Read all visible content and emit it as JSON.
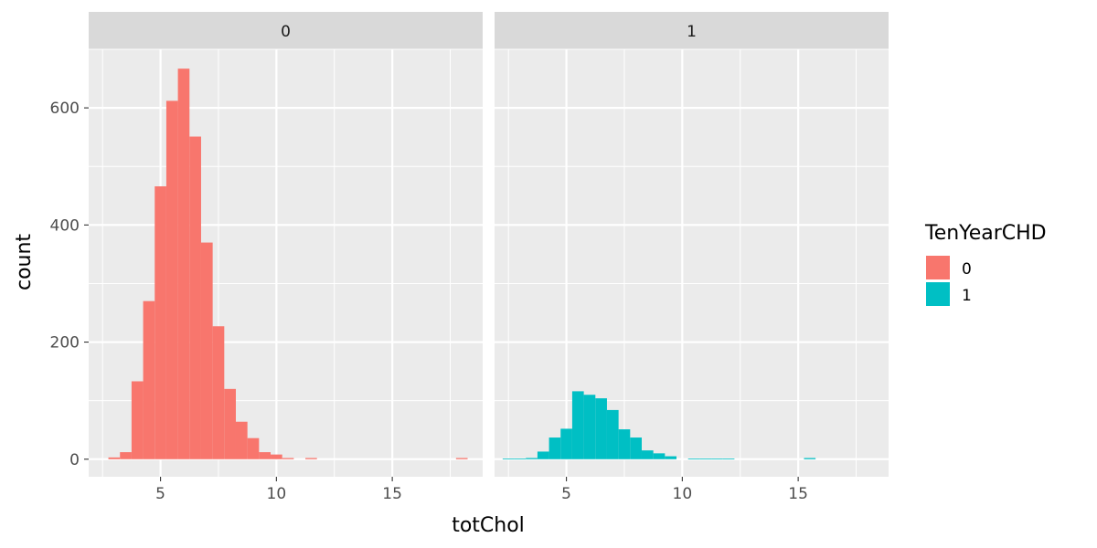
{
  "chart_data": {
    "type": "bar",
    "subtype": "faceted-histogram",
    "xlabel": "totChol",
    "ylabel": "count",
    "xlim": [
      1.9,
      18.9
    ],
    "ylim": [
      -30,
      700
    ],
    "x_ticks": [
      5,
      10,
      15
    ],
    "x_tick_labels": [
      "5",
      "10",
      "15"
    ],
    "y_ticks": [
      0,
      200,
      400,
      600
    ],
    "y_tick_labels": [
      "0",
      "200",
      "400",
      "600"
    ],
    "bin_width": 0.5,
    "grid": true,
    "legend": {
      "title": "TenYearCHD",
      "placement": "right",
      "entries": [
        {
          "label": "0",
          "color": "#F8766D"
        },
        {
          "label": "1",
          "color": "#00BFC4"
        }
      ]
    },
    "facets": [
      {
        "strip_label": "0",
        "series_label": "0",
        "color": "#F8766D",
        "bins": [
          {
            "x": 3.0,
            "count": 3
          },
          {
            "x": 3.5,
            "count": 12
          },
          {
            "x": 4.0,
            "count": 133
          },
          {
            "x": 4.5,
            "count": 270
          },
          {
            "x": 5.0,
            "count": 466
          },
          {
            "x": 5.5,
            "count": 612
          },
          {
            "x": 6.0,
            "count": 667
          },
          {
            "x": 6.5,
            "count": 551
          },
          {
            "x": 7.0,
            "count": 370
          },
          {
            "x": 7.5,
            "count": 227
          },
          {
            "x": 8.0,
            "count": 120
          },
          {
            "x": 8.5,
            "count": 64
          },
          {
            "x": 9.0,
            "count": 36
          },
          {
            "x": 9.5,
            "count": 12
          },
          {
            "x": 10.0,
            "count": 8
          },
          {
            "x": 10.5,
            "count": 2
          },
          {
            "x": 11.5,
            "count": 2
          },
          {
            "x": 18.0,
            "count": 2
          }
        ]
      },
      {
        "strip_label": "1",
        "series_label": "1",
        "color": "#00BFC4",
        "bins": [
          {
            "x": 2.5,
            "count": 1
          },
          {
            "x": 3.0,
            "count": 1
          },
          {
            "x": 3.5,
            "count": 2
          },
          {
            "x": 4.0,
            "count": 13
          },
          {
            "x": 4.5,
            "count": 37
          },
          {
            "x": 5.0,
            "count": 52
          },
          {
            "x": 5.5,
            "count": 116
          },
          {
            "x": 6.0,
            "count": 110
          },
          {
            "x": 6.5,
            "count": 104
          },
          {
            "x": 7.0,
            "count": 84
          },
          {
            "x": 7.5,
            "count": 51
          },
          {
            "x": 8.0,
            "count": 37
          },
          {
            "x": 8.5,
            "count": 15
          },
          {
            "x": 9.0,
            "count": 10
          },
          {
            "x": 9.5,
            "count": 5
          },
          {
            "x": 10.5,
            "count": 1
          },
          {
            "x": 11.0,
            "count": 1
          },
          {
            "x": 11.5,
            "count": 1
          },
          {
            "x": 12.0,
            "count": 1
          },
          {
            "x": 15.5,
            "count": 2
          }
        ]
      }
    ]
  }
}
